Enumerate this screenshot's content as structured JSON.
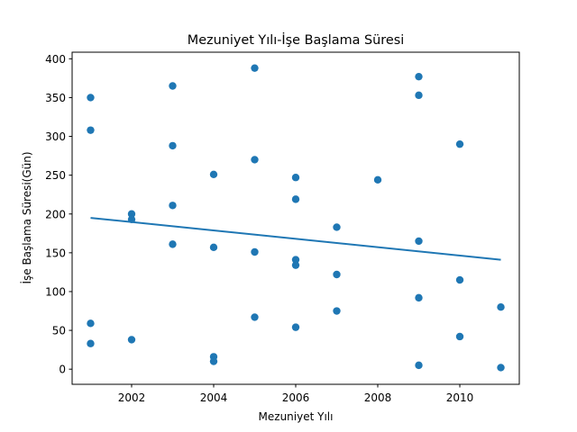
{
  "chart_data": {
    "type": "scatter",
    "title": "Mezuniyet Yılı-İşe Başlama Süresi",
    "xlabel": "Mezuniyet Yılı",
    "ylabel": "İşe Başlama Süresi(Gün)",
    "xlim": [
      2000.55,
      2011.45
    ],
    "ylim": [
      -19.5,
      408.5
    ],
    "x_ticks": [
      2002,
      2004,
      2006,
      2008,
      2010
    ],
    "y_ticks": [
      0,
      50,
      100,
      150,
      200,
      250,
      300,
      350,
      400
    ],
    "grid": false,
    "marker_color": "#1f77b4",
    "trend_color": "#1f77b4",
    "points": [
      {
        "x": 2001,
        "y": 350
      },
      {
        "x": 2001,
        "y": 308
      },
      {
        "x": 2001,
        "y": 59
      },
      {
        "x": 2001,
        "y": 33
      },
      {
        "x": 2002,
        "y": 200
      },
      {
        "x": 2002,
        "y": 193
      },
      {
        "x": 2002,
        "y": 38
      },
      {
        "x": 2003,
        "y": 365
      },
      {
        "x": 2003,
        "y": 288
      },
      {
        "x": 2003,
        "y": 211
      },
      {
        "x": 2003,
        "y": 161
      },
      {
        "x": 2004,
        "y": 251
      },
      {
        "x": 2004,
        "y": 157
      },
      {
        "x": 2004,
        "y": 16
      },
      {
        "x": 2004,
        "y": 10
      },
      {
        "x": 2005,
        "y": 388
      },
      {
        "x": 2005,
        "y": 270
      },
      {
        "x": 2005,
        "y": 151
      },
      {
        "x": 2005,
        "y": 67
      },
      {
        "x": 2006,
        "y": 247
      },
      {
        "x": 2006,
        "y": 219
      },
      {
        "x": 2006,
        "y": 141
      },
      {
        "x": 2006,
        "y": 134
      },
      {
        "x": 2006,
        "y": 54
      },
      {
        "x": 2007,
        "y": 183
      },
      {
        "x": 2007,
        "y": 122
      },
      {
        "x": 2007,
        "y": 75
      },
      {
        "x": 2008,
        "y": 244
      },
      {
        "x": 2009,
        "y": 377
      },
      {
        "x": 2009,
        "y": 353
      },
      {
        "x": 2009,
        "y": 165
      },
      {
        "x": 2009,
        "y": 92
      },
      {
        "x": 2009,
        "y": 5
      },
      {
        "x": 2010,
        "y": 290
      },
      {
        "x": 2010,
        "y": 115
      },
      {
        "x": 2010,
        "y": 42
      },
      {
        "x": 2011,
        "y": 80
      },
      {
        "x": 2011,
        "y": 2
      }
    ],
    "trend_line": {
      "x": [
        2001,
        2011
      ],
      "y": [
        195,
        141
      ]
    }
  }
}
